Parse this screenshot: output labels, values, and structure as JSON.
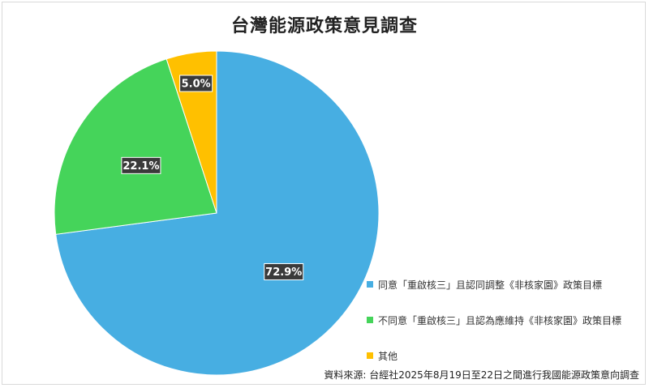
{
  "chart_data": {
    "type": "pie",
    "title": "台灣能源政策意見調查",
    "categories": [
      "同意「重啟核三」且認同調整《非核家園》政策目標",
      "不同意「重啟核三」且認為應維持《非核家園》政策目標",
      "其他"
    ],
    "values": [
      72.9,
      22.1,
      5.0
    ],
    "data_labels": [
      "72.9%",
      "22.1%",
      "5.0%"
    ],
    "colors": [
      "#47AEE2",
      "#45D45A",
      "#FFC000"
    ],
    "legend_position": "bottom-right",
    "start_angle": "12 o'clock",
    "direction": "clockwise"
  },
  "source_note": "資料來源: 台經社2025年8月19日至22日之間進行我國能源政策意向調查"
}
